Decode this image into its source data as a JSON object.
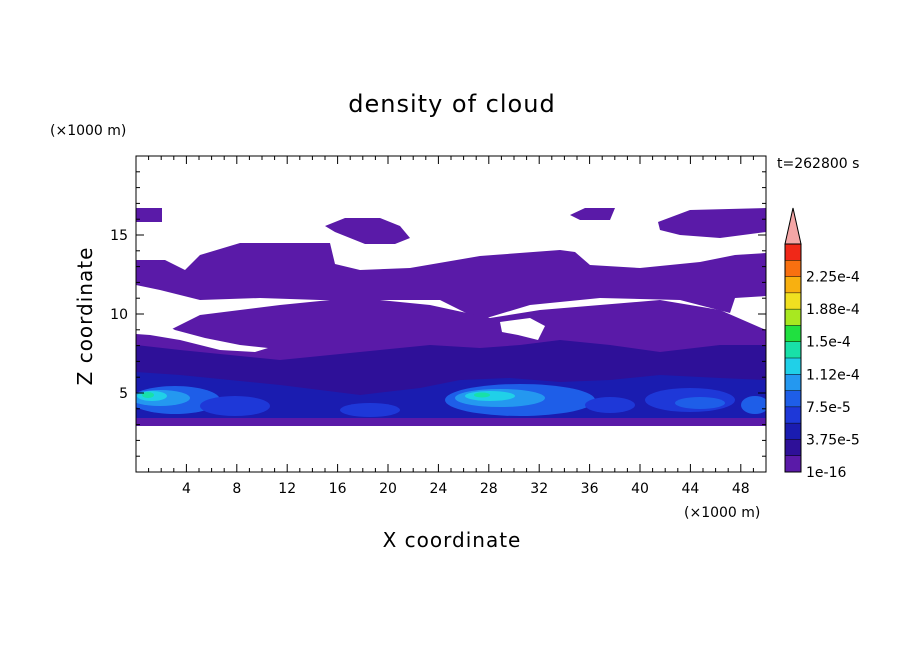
{
  "chart_data": {
    "type": "heatmap",
    "title": "density of cloud",
    "time_label": "t=262800 s",
    "xlabel": "X coordinate",
    "ylabel": "Z coordinate",
    "x_unit": "(×1000 m)",
    "y_unit": "(×1000 m)",
    "xlim": [
      0,
      50
    ],
    "ylim": [
      0,
      20
    ],
    "x_ticks": [
      "4",
      "8",
      "12",
      "16",
      "20",
      "24",
      "28",
      "32",
      "36",
      "40",
      "44",
      "48"
    ],
    "y_ticks": [
      "5",
      "10",
      "15"
    ],
    "colorbar": {
      "labels": [
        "1e-16",
        "3.75e-5",
        "7.5e-5",
        "1.12e-4",
        "1.5e-4",
        "1.88e-4",
        "2.25e-4"
      ],
      "levels": [
        1e-16,
        1.875e-05,
        3.75e-05,
        5.625e-05,
        7.5e-05,
        9.375e-05,
        0.0001125,
        0.00013125,
        0.00015,
        0.00016875,
        0.0001875,
        0.00020625,
        0.000225,
        0.00024375
      ],
      "colors": [
        "#5a1aa8",
        "#2e1098",
        "#1a1cb0",
        "#1e38d8",
        "#1e5ee8",
        "#2498f0",
        "#20d0e8",
        "#18e0a8",
        "#20e040",
        "#a8e820",
        "#f0e020",
        "#f8b010",
        "#f87010",
        "#f02818"
      ],
      "extend_color": "#f4a6a6",
      "extend": "max"
    },
    "cloud_layers": [
      {
        "z_bottom": 3.3,
        "z_top": 9.0,
        "x_start": 0,
        "x_end": 50,
        "level": 1e-16
      },
      {
        "z_bottom": 10.0,
        "z_top": 13.3,
        "x_start": 0,
        "x_end": 50,
        "level": 1e-16
      },
      {
        "z_bottom": 3.3,
        "z_top": 7.0,
        "x_start": 0,
        "x_end": 50,
        "level": 1.875e-05
      },
      {
        "z_bottom": 3.5,
        "z_top": 5.5,
        "x_start": 0,
        "x_end": 50,
        "level": 5.625e-05
      }
    ],
    "maxima": [
      {
        "x": 1.5,
        "z": 4.9,
        "value": 0.00015
      },
      {
        "x": 27.5,
        "z": 5.0,
        "value": 0.00015
      }
    ]
  }
}
